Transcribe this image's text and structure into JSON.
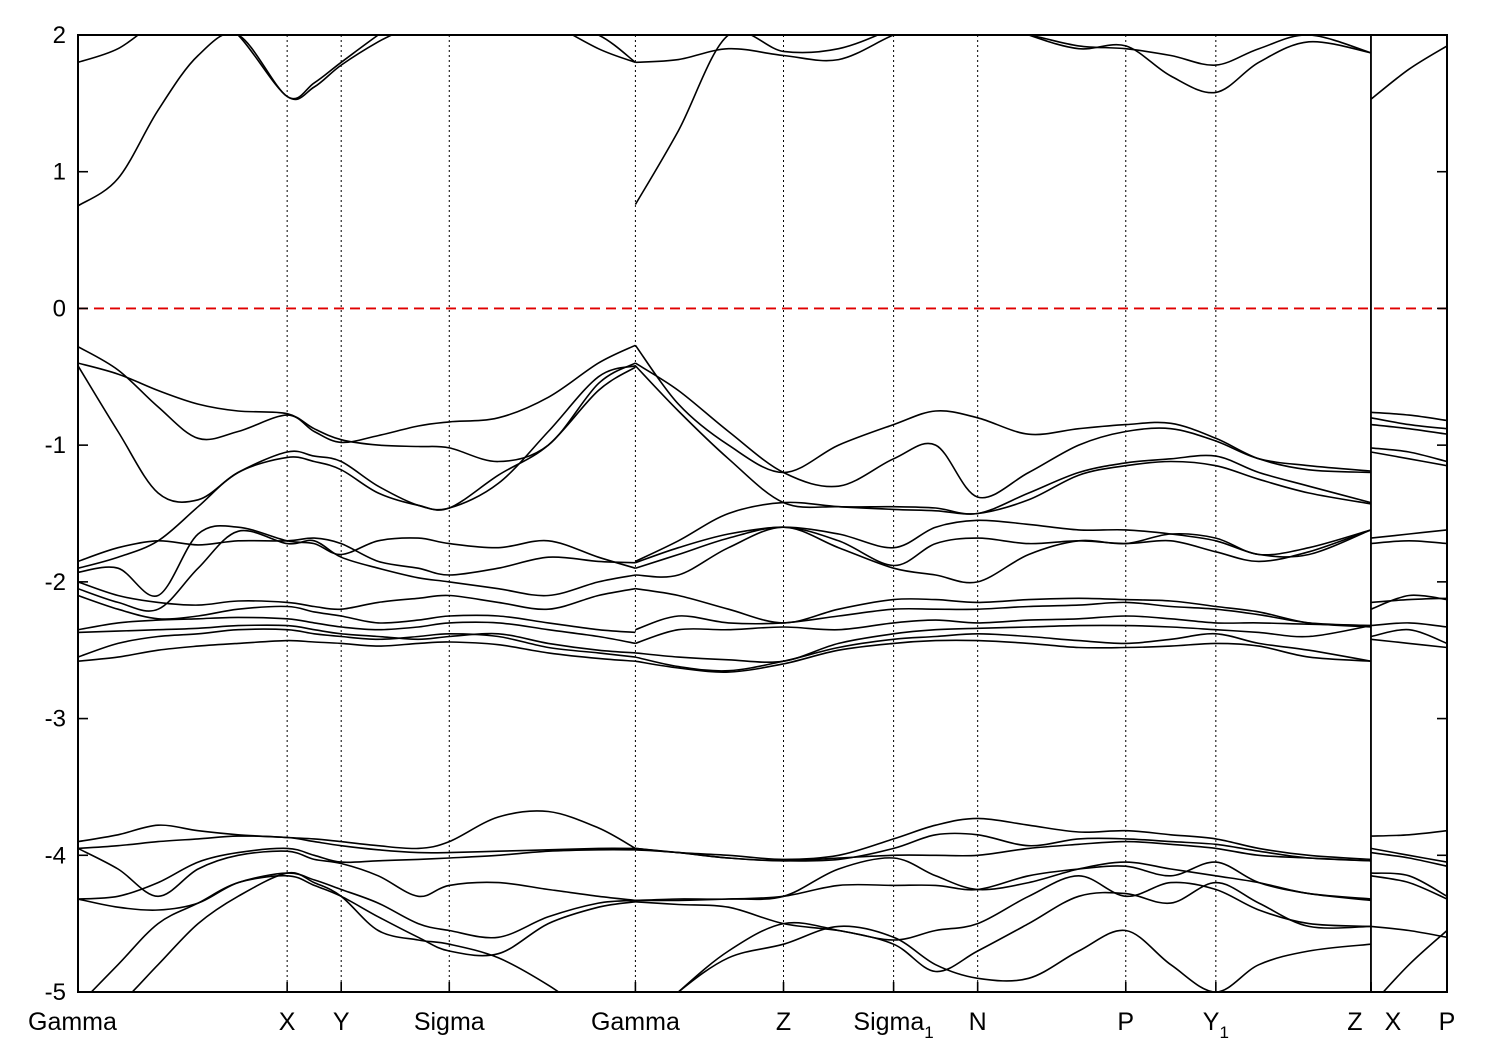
{
  "chart_data": {
    "type": "line",
    "title": "",
    "xlabel": "",
    "ylabel": "",
    "ylim": [
      -5,
      2
    ],
    "xlim": [
      0,
      1368
    ],
    "grid": false,
    "yticks": [
      -5,
      -4,
      -3,
      -2,
      -1,
      0,
      1,
      2
    ],
    "ytick_labels": [
      "-5",
      "-4",
      "-3",
      "-2",
      "-1",
      "0",
      "1",
      "2"
    ],
    "kpoints": [
      {
        "label": "Gamma",
        "sub": "",
        "x": 0
      },
      {
        "label": "X",
        "sub": "",
        "x": 209
      },
      {
        "label": "Y",
        "sub": "",
        "x": 263
      },
      {
        "label": "Sigma",
        "sub": "",
        "x": 371
      },
      {
        "label": "Gamma",
        "sub": "",
        "x": 557
      },
      {
        "label": "Z",
        "sub": "",
        "x": 705
      },
      {
        "label": "Sigma",
        "sub": "1",
        "x": 815
      },
      {
        "label": "N",
        "sub": "",
        "x": 899
      },
      {
        "label": "P",
        "sub": "",
        "x": 1047
      },
      {
        "label": "Y",
        "sub": "1",
        "x": 1137
      },
      {
        "label": "Z",
        "sub": "",
        "x": 1292
      },
      {
        "label": "X",
        "sub": "",
        "x": 1292
      },
      {
        "label": "P",
        "sub": "",
        "x": 1368
      }
    ],
    "panel_break_x": 1292,
    "fermi_level": 0,
    "series_groups": [
      {
        "x": [
          0,
          40,
          80,
          120,
          160,
          209,
          236,
          263,
          300,
          340,
          371,
          420,
          470,
          520,
          557
        ],
        "bands": [
          [
            0.75,
            0.95,
            1.45,
            1.85,
            2.0,
            1.55,
            1.65,
            1.8,
            2.0,
            2.2,
            2.4,
            2.3,
            2.1,
            1.9,
            1.8
          ],
          [
            1.8,
            1.9,
            2.1,
            2.2,
            2.0,
            1.55,
            1.62,
            1.78,
            1.95,
            2.1,
            2.3,
            2.2,
            2.1,
            2.0,
            1.8
          ],
          [
            -0.28,
            -0.45,
            -0.72,
            -0.95,
            -0.9,
            -0.78,
            -0.9,
            -0.98,
            -0.93,
            -0.86,
            -0.83,
            -0.8,
            -0.65,
            -0.4,
            -0.27
          ],
          [
            -0.4,
            -0.48,
            -0.6,
            -0.7,
            -0.75,
            -0.77,
            -0.88,
            -0.96,
            -1.0,
            -1.01,
            -1.02,
            -1.12,
            -1.0,
            -0.55,
            -0.4
          ],
          [
            -0.42,
            -0.9,
            -1.35,
            -1.4,
            -1.2,
            -1.05,
            -1.08,
            -1.12,
            -1.3,
            -1.44,
            -1.46,
            -1.28,
            -0.9,
            -0.5,
            -0.42
          ],
          [
            -1.9,
            -1.82,
            -1.7,
            -1.45,
            -1.2,
            -1.09,
            -1.12,
            -1.18,
            -1.35,
            -1.44,
            -1.46,
            -1.22,
            -1.0,
            -0.6,
            -0.43
          ],
          [
            -1.85,
            -1.75,
            -1.7,
            -1.73,
            -1.7,
            -1.7,
            -1.68,
            -1.72,
            -1.85,
            -1.9,
            -1.95,
            -1.9,
            -1.82,
            -1.85,
            -1.86
          ],
          [
            -1.93,
            -1.9,
            -2.1,
            -1.65,
            -1.6,
            -1.7,
            -1.72,
            -1.8,
            -1.7,
            -1.68,
            -1.72,
            -1.75,
            -1.7,
            -1.82,
            -1.9
          ],
          [
            -2.05,
            -2.15,
            -2.2,
            -1.9,
            -1.63,
            -1.72,
            -1.7,
            -1.82,
            -1.9,
            -1.97,
            -2.0,
            -2.05,
            -2.1,
            -2.0,
            -1.95
          ],
          [
            -2.0,
            -2.1,
            -2.15,
            -2.17,
            -2.14,
            -2.15,
            -2.18,
            -2.2,
            -2.15,
            -2.12,
            -2.1,
            -2.15,
            -2.2,
            -2.1,
            -2.05
          ],
          [
            -2.1,
            -2.2,
            -2.27,
            -2.25,
            -2.2,
            -2.18,
            -2.22,
            -2.25,
            -2.3,
            -2.28,
            -2.25,
            -2.25,
            -2.3,
            -2.35,
            -2.37
          ],
          [
            -2.35,
            -2.3,
            -2.28,
            -2.27,
            -2.26,
            -2.27,
            -2.3,
            -2.33,
            -2.35,
            -2.33,
            -2.3,
            -2.3,
            -2.35,
            -2.4,
            -2.45
          ],
          [
            -2.37,
            -2.36,
            -2.35,
            -2.34,
            -2.32,
            -2.32,
            -2.35,
            -2.38,
            -2.4,
            -2.42,
            -2.4,
            -2.38,
            -2.45,
            -2.5,
            -2.52
          ],
          [
            -2.55,
            -2.45,
            -2.4,
            -2.38,
            -2.35,
            -2.35,
            -2.38,
            -2.4,
            -2.42,
            -2.4,
            -2.38,
            -2.4,
            -2.48,
            -2.52,
            -2.55
          ],
          [
            -2.58,
            -2.55,
            -2.5,
            -2.47,
            -2.45,
            -2.43,
            -2.44,
            -2.45,
            -2.47,
            -2.45,
            -2.44,
            -2.46,
            -2.52,
            -2.56,
            -2.58
          ],
          [
            -3.9,
            -3.85,
            -3.78,
            -3.82,
            -3.85,
            -3.87,
            -3.88,
            -3.9,
            -3.93,
            -3.95,
            -3.9,
            -3.72,
            -3.68,
            -3.8,
            -3.95
          ],
          [
            -3.95,
            -3.93,
            -3.9,
            -3.88,
            -3.86,
            -3.87,
            -3.9,
            -3.93,
            -3.96,
            -3.98,
            -3.98,
            -3.97,
            -3.96,
            -3.95,
            -3.95
          ],
          [
            -4.32,
            -4.3,
            -4.2,
            -4.05,
            -3.98,
            -3.95,
            -4.0,
            -4.05,
            -4.04,
            -4.03,
            -4.02,
            -4.0,
            -3.97,
            -3.96,
            -3.96
          ],
          [
            -3.95,
            -4.1,
            -4.3,
            -4.1,
            -4.0,
            -3.97,
            -4.03,
            -4.06,
            -4.15,
            -4.3,
            -4.22,
            -4.2,
            -4.25,
            -4.3,
            -4.33
          ],
          [
            -4.32,
            -4.38,
            -4.4,
            -4.35,
            -4.2,
            -4.13,
            -4.18,
            -4.25,
            -4.35,
            -4.5,
            -4.55,
            -4.6,
            -4.45,
            -4.35,
            -4.33
          ],
          [
            -5.1,
            -4.8,
            -4.5,
            -4.35,
            -4.2,
            -4.15,
            -4.22,
            -4.3,
            -4.45,
            -4.6,
            -4.7,
            -4.72,
            -4.5,
            -4.38,
            -4.34
          ],
          [
            -5.3,
            -5.1,
            -4.8,
            -4.5,
            -4.3,
            -4.13,
            -4.2,
            -4.3,
            -4.55,
            -4.62,
            -4.65,
            -4.75,
            -4.95,
            -5.2,
            -5.3
          ]
        ]
      },
      {
        "x": [
          557,
          600,
          650,
          705,
          760,
          815,
          857,
          899,
          950,
          1000,
          1047,
          1092,
          1137,
          1180,
          1230,
          1292
        ],
        "bands": [
          [
            1.8,
            1.82,
            1.9,
            1.85,
            1.82,
            2.0,
            2.1,
            2.05,
            2.0,
            1.92,
            1.9,
            1.85,
            1.78,
            1.9,
            2.0,
            1.87
          ],
          [
            0.76,
            1.3,
            2.0,
            1.88,
            1.9,
            2.05,
            2.2,
            2.15,
            2.0,
            1.9,
            1.92,
            1.7,
            1.58,
            1.8,
            1.95,
            1.87
          ],
          [
            -0.27,
            -0.7,
            -1.0,
            -1.2,
            -1.0,
            -0.85,
            -0.75,
            -0.8,
            -0.92,
            -0.88,
            -0.85,
            -0.84,
            -0.95,
            -1.1,
            -1.18,
            -1.2
          ],
          [
            -0.4,
            -0.6,
            -0.9,
            -1.2,
            -1.3,
            -1.1,
            -1.0,
            -1.38,
            -1.2,
            -1.0,
            -0.9,
            -0.88,
            -0.97,
            -1.1,
            -1.15,
            -1.19
          ],
          [
            -0.42,
            -0.75,
            -1.1,
            -1.42,
            -1.45,
            -1.45,
            -1.46,
            -1.5,
            -1.35,
            -1.2,
            -1.13,
            -1.1,
            -1.08,
            -1.2,
            -1.3,
            -1.42
          ],
          [
            -1.85,
            -1.7,
            -1.5,
            -1.42,
            -1.45,
            -1.47,
            -1.48,
            -1.5,
            -1.4,
            -1.22,
            -1.15,
            -1.12,
            -1.15,
            -1.25,
            -1.35,
            -1.43
          ],
          [
            -1.86,
            -1.75,
            -1.65,
            -1.6,
            -1.65,
            -1.75,
            -1.6,
            -1.55,
            -1.58,
            -1.62,
            -1.62,
            -1.65,
            -1.7,
            -1.8,
            -1.8,
            -1.62
          ],
          [
            -1.9,
            -1.8,
            -1.68,
            -1.6,
            -1.7,
            -1.88,
            -1.72,
            -1.68,
            -1.72,
            -1.7,
            -1.72,
            -1.7,
            -1.78,
            -1.85,
            -1.78,
            -1.62
          ],
          [
            -1.95,
            -1.95,
            -1.75,
            -1.6,
            -1.75,
            -1.9,
            -1.95,
            -2.0,
            -1.8,
            -1.7,
            -1.72,
            -1.65,
            -1.68,
            -1.8,
            -1.75,
            -1.62
          ],
          [
            -2.05,
            -2.1,
            -2.2,
            -2.3,
            -2.2,
            -2.13,
            -2.13,
            -2.15,
            -2.13,
            -2.12,
            -2.13,
            -2.14,
            -2.18,
            -2.22,
            -2.3,
            -2.33
          ],
          [
            -2.35,
            -2.25,
            -2.3,
            -2.3,
            -2.25,
            -2.2,
            -2.2,
            -2.2,
            -2.18,
            -2.17,
            -2.15,
            -2.18,
            -2.2,
            -2.24,
            -2.3,
            -2.32
          ],
          [
            -2.45,
            -2.35,
            -2.35,
            -2.33,
            -2.35,
            -2.3,
            -2.28,
            -2.3,
            -2.28,
            -2.27,
            -2.25,
            -2.27,
            -2.3,
            -2.3,
            -2.31,
            -2.32
          ],
          [
            -2.52,
            -2.55,
            -2.57,
            -2.58,
            -2.45,
            -2.38,
            -2.35,
            -2.34,
            -2.33,
            -2.32,
            -2.32,
            -2.33,
            -2.35,
            -2.37,
            -2.4,
            -2.32
          ],
          [
            -2.55,
            -2.62,
            -2.65,
            -2.58,
            -2.48,
            -2.42,
            -2.4,
            -2.38,
            -2.4,
            -2.43,
            -2.45,
            -2.42,
            -2.38,
            -2.45,
            -2.5,
            -2.58
          ],
          [
            -2.58,
            -2.63,
            -2.66,
            -2.6,
            -2.5,
            -2.45,
            -2.43,
            -2.43,
            -2.45,
            -2.48,
            -2.48,
            -2.47,
            -2.45,
            -2.47,
            -2.55,
            -2.58
          ],
          [
            -3.95,
            -3.98,
            -4.0,
            -4.03,
            -4.0,
            -3.88,
            -3.78,
            -3.73,
            -3.78,
            -3.83,
            -3.82,
            -3.85,
            -3.88,
            -3.95,
            -4.0,
            -4.03
          ],
          [
            -3.95,
            -3.98,
            -4.02,
            -4.04,
            -4.03,
            -3.95,
            -3.85,
            -3.85,
            -3.93,
            -3.88,
            -3.88,
            -3.9,
            -3.92,
            -3.97,
            -4.02,
            -4.04
          ],
          [
            -3.96,
            -3.98,
            -4.02,
            -4.04,
            -4.02,
            -4.0,
            -4.0,
            -4.0,
            -3.95,
            -3.92,
            -3.9,
            -3.92,
            -3.95,
            -4.0,
            -4.02,
            -4.04
          ],
          [
            -4.33,
            -4.33,
            -4.32,
            -4.3,
            -4.1,
            -4.02,
            -4.15,
            -4.25,
            -4.2,
            -4.1,
            -4.05,
            -4.1,
            -4.15,
            -4.2,
            -4.28,
            -4.32
          ],
          [
            -4.33,
            -4.32,
            -4.32,
            -4.3,
            -4.22,
            -4.22,
            -4.22,
            -4.25,
            -4.15,
            -4.1,
            -4.08,
            -4.15,
            -4.05,
            -4.2,
            -4.28,
            -4.33
          ],
          [
            -4.34,
            -4.36,
            -4.38,
            -4.5,
            -4.55,
            -4.62,
            -4.55,
            -4.5,
            -4.3,
            -4.15,
            -4.3,
            -4.2,
            -4.25,
            -4.4,
            -4.5,
            -4.52
          ],
          [
            -5.3,
            -5.0,
            -4.7,
            -4.5,
            -4.55,
            -4.65,
            -4.85,
            -4.7,
            -4.5,
            -4.3,
            -4.28,
            -4.35,
            -4.2,
            -4.35,
            -4.52,
            -4.52
          ],
          [
            -5.3,
            -5.0,
            -4.75,
            -4.65,
            -4.52,
            -4.6,
            -4.8,
            -4.9,
            -4.9,
            -4.7,
            -4.55,
            -4.8,
            -5.0,
            -4.8,
            -4.7,
            -4.65
          ]
        ]
      },
      {
        "x": [
          1292,
          1330,
          1368
        ],
        "bands": [
          [
            1.53,
            1.75,
            1.92
          ],
          [
            -0.76,
            -0.78,
            -0.82
          ],
          [
            -0.8,
            -0.85,
            -0.88
          ],
          [
            -0.85,
            -0.88,
            -0.92
          ],
          [
            -1.02,
            -1.05,
            -1.12
          ],
          [
            -1.05,
            -1.1,
            -1.15
          ],
          [
            -1.68,
            -1.65,
            -1.62
          ],
          [
            -1.72,
            -1.7,
            -1.72
          ],
          [
            -2.15,
            -2.13,
            -2.12
          ],
          [
            -2.2,
            -2.1,
            -2.13
          ],
          [
            -2.32,
            -2.3,
            -2.33
          ],
          [
            -2.4,
            -2.35,
            -2.45
          ],
          [
            -2.42,
            -2.45,
            -2.48
          ],
          [
            -3.86,
            -3.85,
            -3.82
          ],
          [
            -3.95,
            -4.0,
            -4.05
          ],
          [
            -3.98,
            -4.02,
            -4.08
          ],
          [
            -4.13,
            -4.15,
            -4.3
          ],
          [
            -4.15,
            -4.2,
            -4.32
          ],
          [
            -4.52,
            -4.55,
            -4.6
          ],
          [
            -5.1,
            -4.8,
            -4.55
          ]
        ]
      }
    ]
  }
}
